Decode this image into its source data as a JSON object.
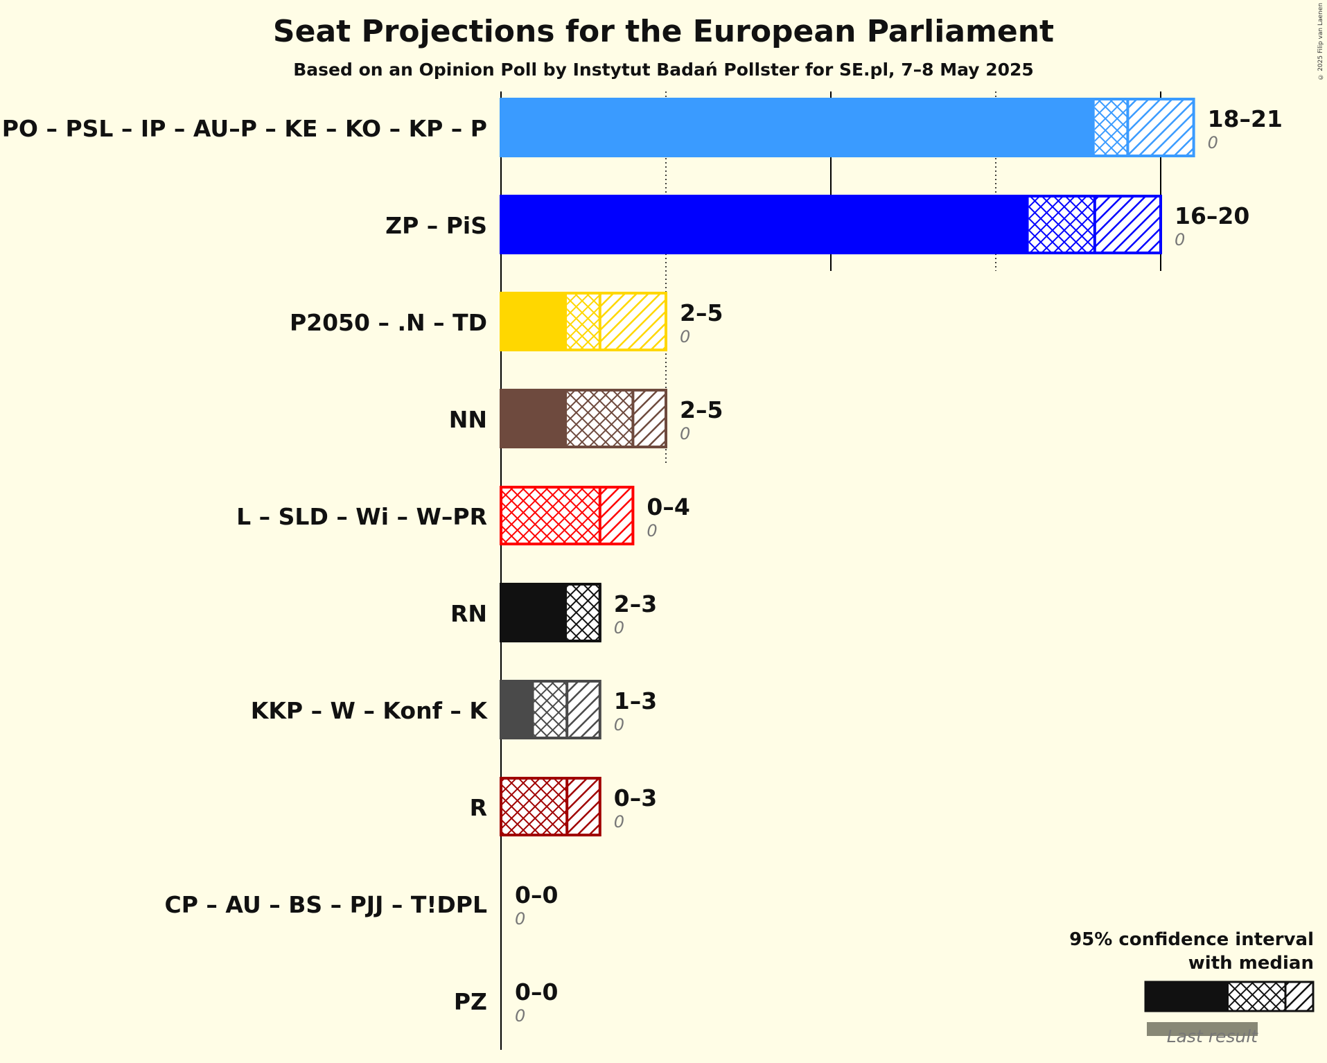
{
  "header": {
    "title": "Seat Projections for the European Parliament",
    "subtitle": "Based on an Opinion Poll by Instytut Badań Pollster for SE.pl, 7–8 May 2025",
    "copyright": "© 2025 Filip van Laenen"
  },
  "chart_data": {
    "type": "bar",
    "orientation": "horizontal",
    "x_range": [
      0,
      21
    ],
    "gridlines": [
      5,
      10,
      15,
      20
    ],
    "categories": [
      "PO – PSL – IP – AU–P – KE – KO – KP – P",
      "ZP – PiS",
      "P2050 – .N – TD",
      "NN",
      "L – SLD – Wi – W–PR",
      "RN",
      "KKP – W – Konf – K",
      "R",
      "CP – AU – BS – PJJ – T!DPL",
      "PZ"
    ],
    "series": [
      {
        "party": "PO – PSL – IP – AU–P – KE – KO – KP – P",
        "low": 18,
        "median": 19,
        "high": 21,
        "range_label": "18–21",
        "last_result": "0",
        "color": "#3a9bff"
      },
      {
        "party": "ZP – PiS",
        "low": 16,
        "median": 18,
        "high": 20,
        "range_label": "16–20",
        "last_result": "0",
        "color": "#0000ff"
      },
      {
        "party": "P2050 – .N – TD",
        "low": 2,
        "median": 3,
        "high": 5,
        "range_label": "2–5",
        "last_result": "0",
        "color": "#ffd700"
      },
      {
        "party": "NN",
        "low": 2,
        "median": 4,
        "high": 5,
        "range_label": "2–5",
        "last_result": "0",
        "color": "#6e4a3e"
      },
      {
        "party": "L – SLD – Wi – W–PR",
        "low": 0,
        "median": 3,
        "high": 4,
        "range_label": "0–4",
        "last_result": "0",
        "color": "#ff0000"
      },
      {
        "party": "RN",
        "low": 2,
        "median": 3,
        "high": 3,
        "range_label": "2–3",
        "last_result": "0",
        "color": "#111111"
      },
      {
        "party": "KKP – W – Konf – K",
        "low": 1,
        "median": 2,
        "high": 3,
        "range_label": "1–3",
        "last_result": "0",
        "color": "#4a4a4a"
      },
      {
        "party": "R",
        "low": 0,
        "median": 2,
        "high": 3,
        "range_label": "0–3",
        "last_result": "0",
        "color": "#a00000"
      },
      {
        "party": "CP – AU – BS – PJJ – T!DPL",
        "low": 0,
        "median": 0,
        "high": 0,
        "range_label": "0–0",
        "last_result": "0",
        "color": "#888888"
      },
      {
        "party": "PZ",
        "low": 0,
        "median": 0,
        "high": 0,
        "range_label": "0–0",
        "last_result": "0",
        "color": "#888888"
      }
    ],
    "legend": {
      "title_line1": "95% confidence interval",
      "title_line2": "with median",
      "last_result_label": "Last result",
      "position": "bottom-right"
    }
  }
}
